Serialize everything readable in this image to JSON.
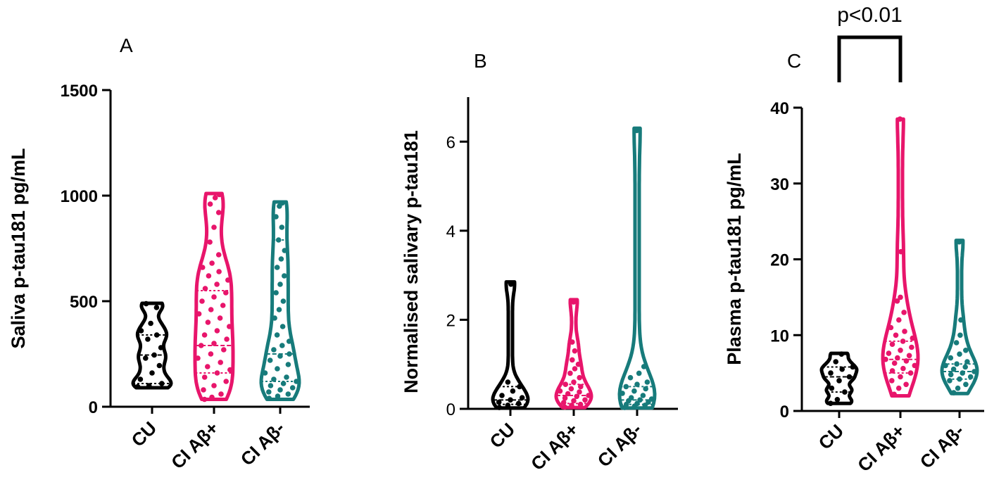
{
  "chart_data": [
    {
      "type": "violin",
      "panel": "A",
      "ylabel": "Saliva p-tau181 pg/mL",
      "ylim": [
        0,
        1500
      ],
      "yticks": [
        "0",
        "500",
        "1000",
        "1500"
      ],
      "categories": [
        "CU",
        "CI Aβ+",
        "CI Aβ-"
      ],
      "colors": [
        "#000000",
        "#e8156b",
        "#177b7b"
      ],
      "series": [
        {
          "category": "CU",
          "min": 90,
          "q1": 110,
          "median": 245,
          "q3": 340,
          "max": 490,
          "values": [
            95,
            100,
            110,
            130,
            160,
            195,
            230,
            245,
            280,
            320,
            340,
            360,
            395,
            470,
            488
          ]
        },
        {
          "category": "CI Aβ+",
          "min": 35,
          "q1": 160,
          "median": 290,
          "q3": 550,
          "max": 1010,
          "values": [
            35,
            45,
            60,
            80,
            100,
            120,
            140,
            160,
            175,
            190,
            210,
            230,
            250,
            270,
            290,
            300,
            320,
            340,
            360,
            380,
            400,
            420,
            440,
            460,
            480,
            500,
            520,
            540,
            560,
            580,
            600,
            620,
            640,
            660,
            680,
            720,
            780,
            850,
            920,
            960,
            990,
            1005
          ]
        },
        {
          "category": "CI Aβ-",
          "min": 35,
          "q1": 120,
          "median": 250,
          "q3": 790,
          "max": 970,
          "values": [
            40,
            50,
            60,
            70,
            80,
            90,
            100,
            110,
            120,
            130,
            140,
            160,
            180,
            200,
            220,
            240,
            250,
            270,
            290,
            310,
            340,
            380,
            420,
            460,
            500,
            540,
            580,
            620,
            660,
            700,
            740,
            790,
            850,
            900,
            950,
            965
          ]
        }
      ]
    },
    {
      "type": "violin",
      "panel": "B",
      "ylabel": "Normalised salivary p-tau181",
      "ylim": [
        0,
        7
      ],
      "yticks": [
        "0",
        "2",
        "4",
        "6"
      ],
      "categories": [
        "CU",
        "CI Aβ+",
        "CI Aβ-"
      ],
      "colors": [
        "#000000",
        "#e8156b",
        "#177b7b"
      ],
      "series": [
        {
          "category": "CU",
          "min": 0.02,
          "q1": 0.1,
          "median": 0.2,
          "q3": 0.5,
          "max": 2.85,
          "values": [
            0.03,
            0.08,
            0.12,
            0.15,
            0.2,
            0.25,
            0.3,
            0.4,
            0.5,
            0.6,
            2.8
          ]
        },
        {
          "category": "CI Aβ+",
          "min": 0.03,
          "q1": 0.12,
          "median": 0.3,
          "q3": 0.55,
          "max": 2.45,
          "values": [
            0.04,
            0.08,
            0.1,
            0.14,
            0.18,
            0.2,
            0.24,
            0.28,
            0.3,
            0.34,
            0.38,
            0.4,
            0.45,
            0.5,
            0.55,
            0.6,
            0.7,
            0.8,
            0.9,
            1.0,
            1.1,
            1.3,
            1.5,
            2.4
          ]
        },
        {
          "category": "CI Aβ-",
          "min": 0.02,
          "q1": 0.1,
          "median": 0.2,
          "q3": 0.5,
          "max": 6.3,
          "values": [
            0.03,
            0.06,
            0.08,
            0.1,
            0.12,
            0.15,
            0.18,
            0.2,
            0.22,
            0.25,
            0.3,
            0.35,
            0.4,
            0.45,
            0.5,
            0.55,
            0.6,
            0.7,
            0.8,
            0.95,
            6.25
          ]
        }
      ]
    },
    {
      "type": "violin",
      "panel": "C",
      "ylabel": "Plasma p-tau181 pg/mL",
      "ylim": [
        0,
        40
      ],
      "yticks": [
        "0",
        "10",
        "20",
        "30",
        "40"
      ],
      "categories": [
        "CU",
        "CI Aβ+",
        "CI Aβ-"
      ],
      "colors": [
        "#000000",
        "#e8156b",
        "#177b7b"
      ],
      "annotation": "p<0.01",
      "series": [
        {
          "category": "CU",
          "min": 1.0,
          "q1": 2.5,
          "median": 4.5,
          "q3": 5.8,
          "max": 7.6,
          "values": [
            1.0,
            1.5,
            2.5,
            3.0,
            4.0,
            4.5,
            5.0,
            5.5,
            5.8,
            6.5,
            7.5
          ]
        },
        {
          "category": "CI Aβ+",
          "min": 2.0,
          "q1": 5.0,
          "median": 6.8,
          "q3": 9.2,
          "max": 38.5,
          "values": [
            2.2,
            3.0,
            3.5,
            4.0,
            4.5,
            5.0,
            5.3,
            5.6,
            6.0,
            6.3,
            6.6,
            6.8,
            7.0,
            7.3,
            7.6,
            8.0,
            8.4,
            8.8,
            9.2,
            9.6,
            10.0,
            10.5,
            11.0,
            12.0,
            13.0,
            14.5,
            15.0,
            21.0,
            38.5
          ]
        },
        {
          "category": "CI Aβ-",
          "min": 2.3,
          "q1": 4.2,
          "median": 5.2,
          "q3": 6.2,
          "max": 22.5,
          "values": [
            2.4,
            3.0,
            3.5,
            4.0,
            4.2,
            4.5,
            4.8,
            5.0,
            5.2,
            5.5,
            5.8,
            6.0,
            6.2,
            6.5,
            7.0,
            7.5,
            8.0,
            9.0,
            10.0,
            12.0,
            22.3
          ]
        }
      ]
    }
  ]
}
